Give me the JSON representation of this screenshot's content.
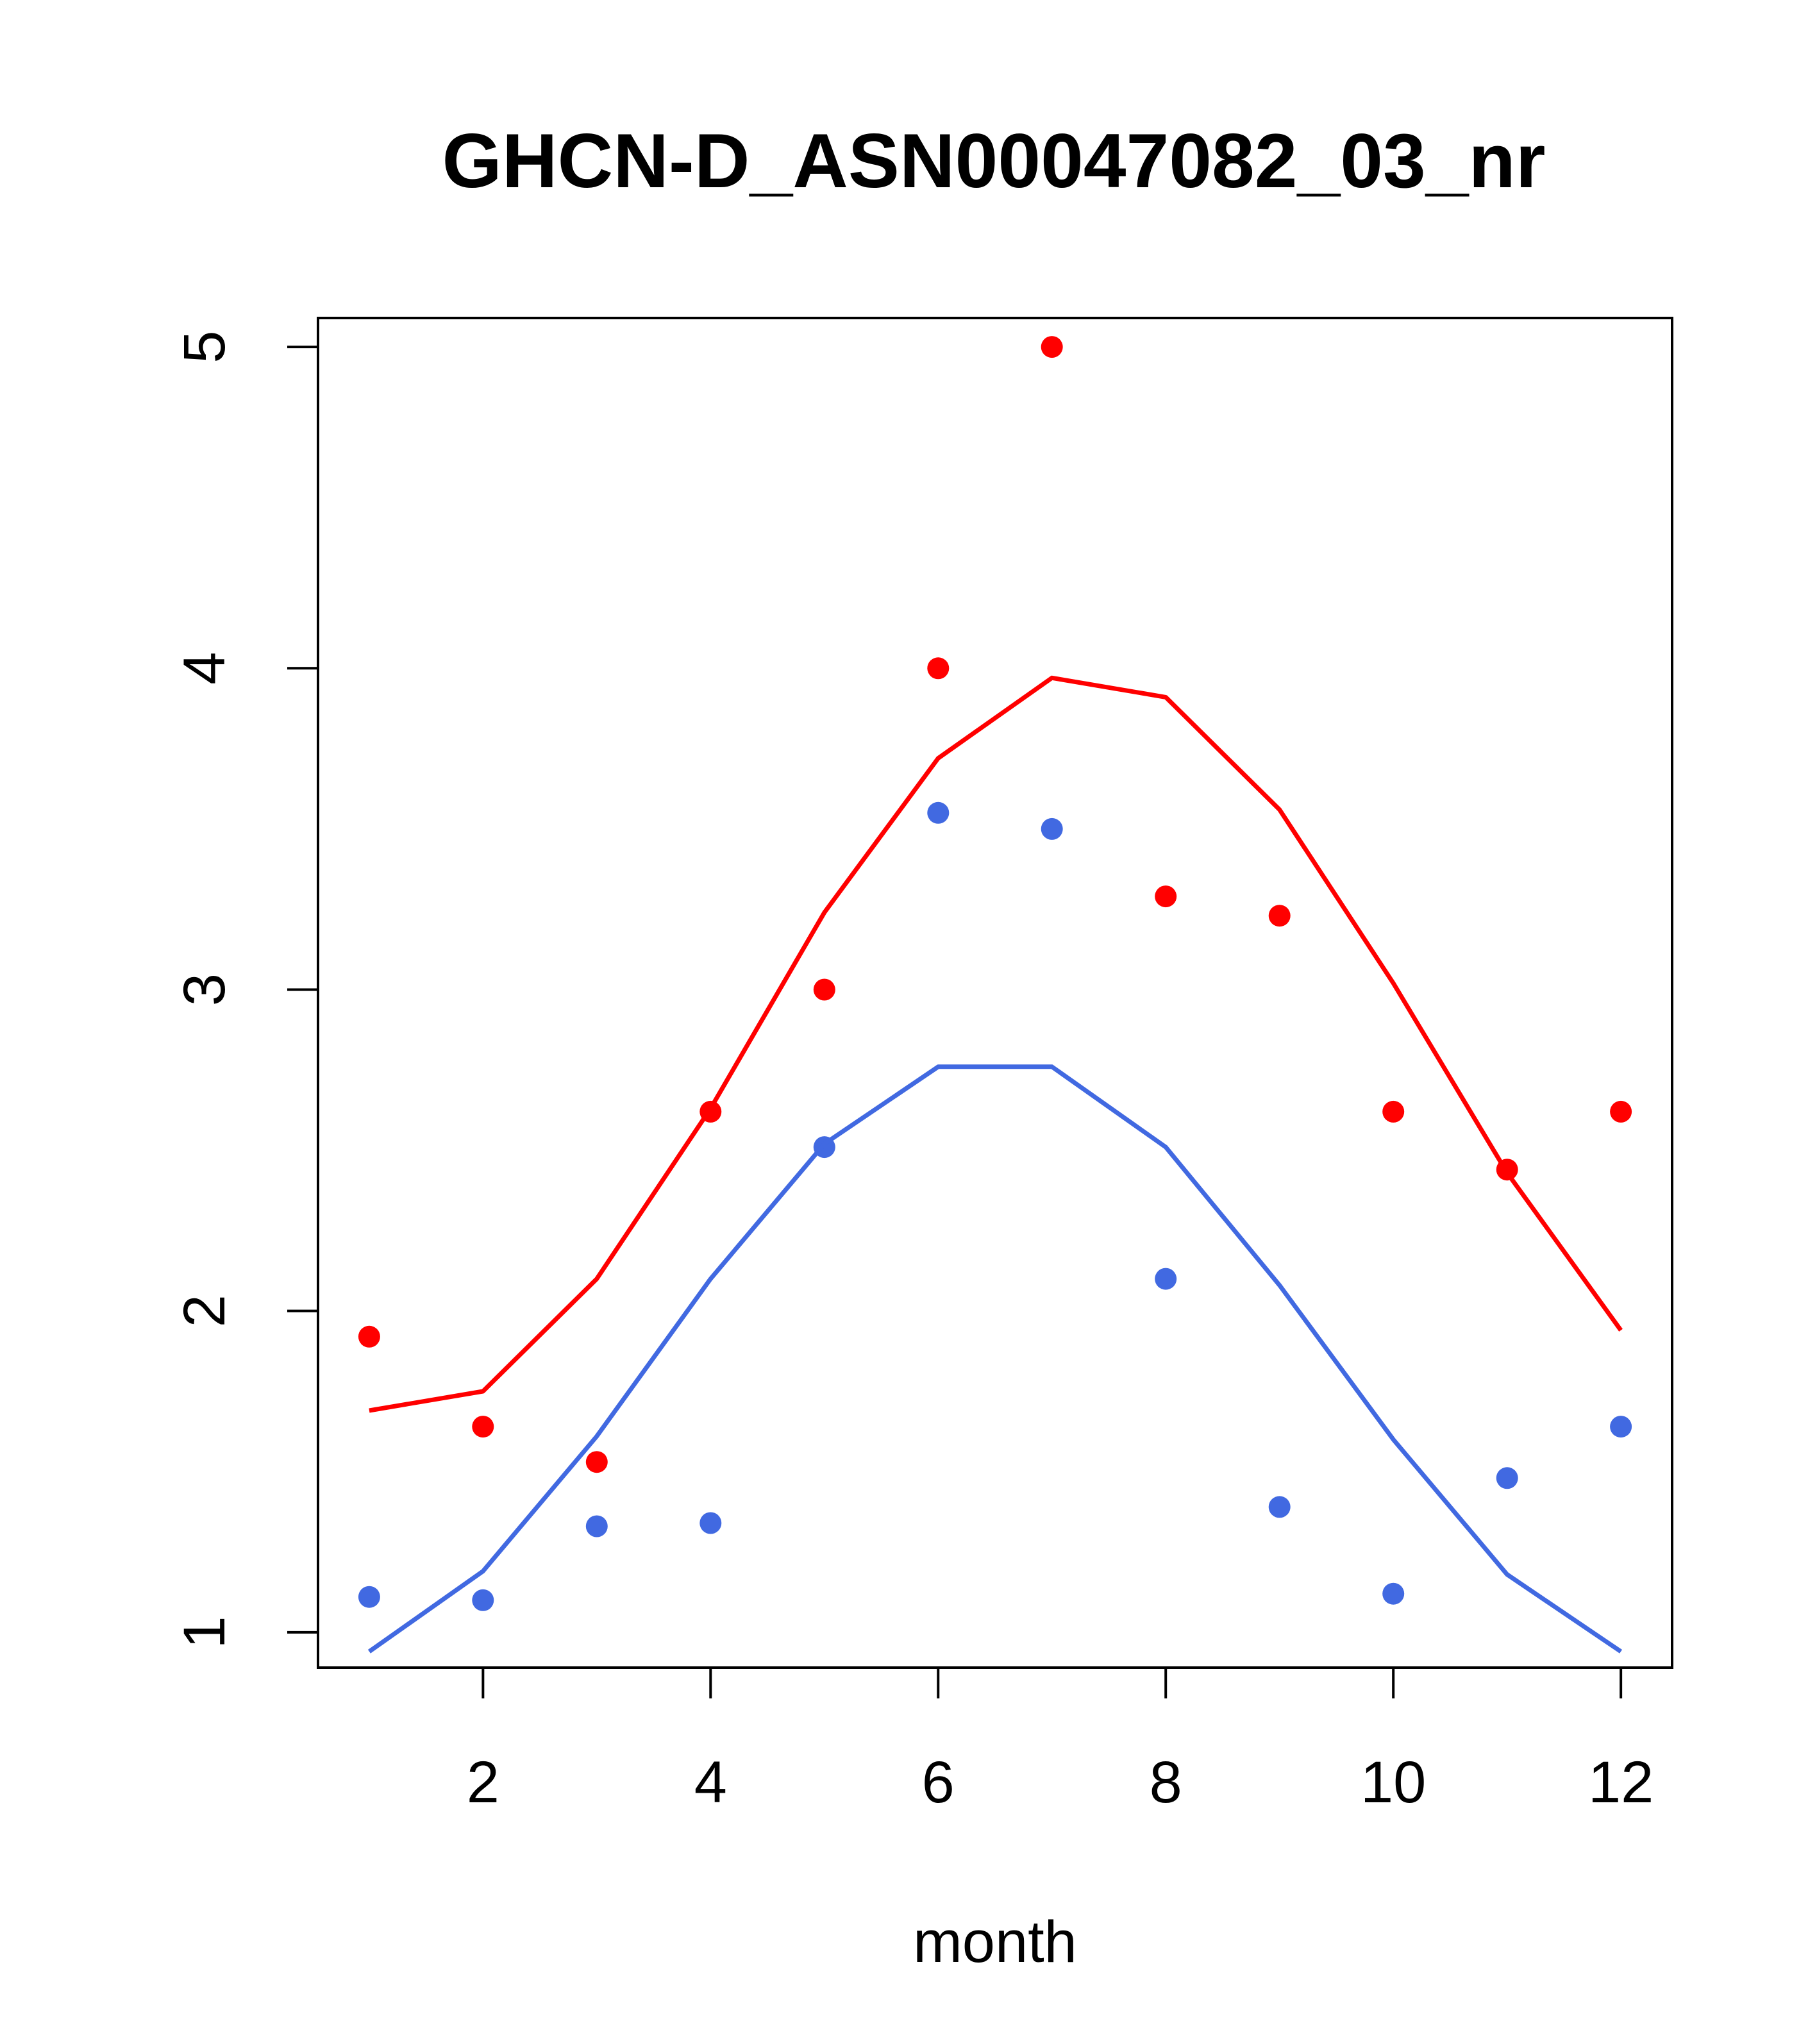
{
  "chart_data": {
    "type": "scatter",
    "title": "GHCN-D_ASN00047082_03_nr",
    "xlabel": "month",
    "ylabel": "",
    "xlim": [
      0.55,
      12.45
    ],
    "ylim": [
      0.89,
      5.09
    ],
    "x_ticks": [
      2,
      4,
      6,
      8,
      10,
      12
    ],
    "y_ticks": [
      1,
      2,
      3,
      4,
      5
    ],
    "grid": false,
    "legend": "none",
    "x": [
      1,
      2,
      3,
      4,
      5,
      6,
      7,
      8,
      9,
      10,
      11,
      12
    ],
    "series": [
      {
        "kind": "points",
        "color": "#ff0000",
        "values": [
          1.92,
          1.64,
          1.53,
          2.62,
          3.0,
          4.0,
          5.0,
          3.29,
          3.23,
          2.62,
          2.44,
          2.62
        ]
      },
      {
        "kind": "line",
        "color": "#ff0000",
        "values": [
          1.69,
          1.75,
          2.1,
          2.63,
          3.24,
          3.72,
          3.97,
          3.91,
          3.56,
          3.02,
          2.43,
          1.94
        ]
      },
      {
        "kind": "points",
        "color": "#4169e1",
        "values": [
          1.11,
          1.1,
          1.33,
          1.34,
          2.51,
          3.55,
          3.5,
          2.1,
          1.39,
          1.12,
          1.48,
          1.64
        ]
      },
      {
        "kind": "line",
        "color": "#4169e1",
        "values": [
          0.94,
          1.19,
          1.61,
          2.1,
          2.52,
          2.76,
          2.76,
          2.51,
          2.08,
          1.6,
          1.18,
          0.94
        ]
      }
    ]
  }
}
